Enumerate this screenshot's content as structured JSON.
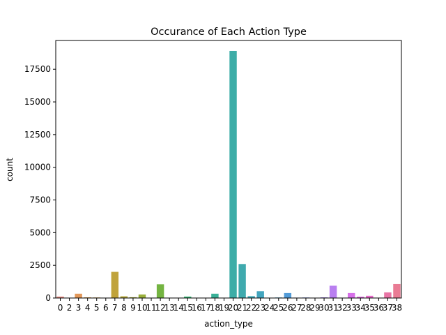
{
  "chart_data": {
    "type": "bar",
    "title": "Occurance of Each Action Type",
    "xlabel": "action_type",
    "ylabel": "count",
    "ylim": [
      0,
      19700
    ],
    "yticks": [
      0,
      2500,
      5000,
      7500,
      10000,
      12500,
      15000,
      17500
    ],
    "ytick_labels": [
      "0",
      "2500",
      "5000",
      "7500",
      "10000",
      "12500",
      "15000",
      "17500"
    ],
    "categories": [
      "0",
      "2",
      "3",
      "4",
      "5",
      "6",
      "7",
      "8",
      "9",
      "10",
      "11",
      "12",
      "13",
      "14",
      "15",
      "16",
      "17",
      "18",
      "19",
      "20",
      "21",
      "22",
      "23",
      "24",
      "25",
      "26",
      "27",
      "28",
      "29",
      "30",
      "31",
      "32",
      "33",
      "34",
      "35",
      "36",
      "37",
      "38"
    ],
    "values": [
      110,
      20,
      330,
      50,
      40,
      10,
      2000,
      130,
      60,
      270,
      10,
      1050,
      10,
      10,
      110,
      10,
      20,
      330,
      10,
      18900,
      2600,
      140,
      520,
      10,
      40,
      380,
      30,
      40,
      20,
      50,
      940,
      10,
      380,
      100,
      170,
      20,
      430,
      1070
    ],
    "colors": [
      "#e9877f",
      "#e58f6c",
      "#e29759",
      "#dc9b4a",
      "#d49e45",
      "#cba340",
      "#c0a33c",
      "#b5a73a",
      "#a7ab39",
      "#99af3a",
      "#88b13d",
      "#74b441",
      "#5cb749",
      "#42b65a",
      "#35b573",
      "#36b382",
      "#38b28d",
      "#39b097",
      "#3bae9f",
      "#3dada7",
      "#3faaae",
      "#41a8b6",
      "#43a5be",
      "#46a2c5",
      "#4a9fce",
      "#529bd7",
      "#6296de",
      "#7b8fe7",
      "#928af0",
      "#a685f0",
      "#b97ff0",
      "#c978ef",
      "#d76fe9",
      "#e16ae0",
      "#e66bc9",
      "#e86fb7",
      "#e874a5",
      "#e97b94"
    ],
    "grid": false
  }
}
